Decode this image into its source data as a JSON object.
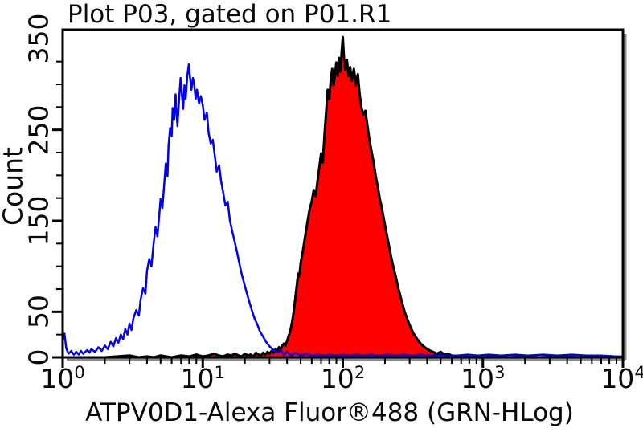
{
  "chart_data": {
    "type": "area",
    "subtype": "flow-cytometry-overlay-histogram",
    "title": "Plot P03, gated on P01.R1",
    "xlabel": "ATPV0D1-Alexa Fluor®488 (GRN-HLog)",
    "ylabel": "Count",
    "x_scale": "log",
    "xlim": [
      1,
      10000
    ],
    "ylim": [
      0,
      360
    ],
    "x_min_exp": 0,
    "x_max_exp": 4,
    "x_tick_base": "10",
    "x_tick_exponents": [
      0,
      1,
      2,
      3,
      4
    ],
    "y_tick_values": [
      0,
      50,
      150,
      250,
      350
    ],
    "y_minor_step": 25,
    "grid": false,
    "legend": "none",
    "frame_color": "#000000",
    "frame_shadow_color": "#8c8c8c",
    "series": [
      {
        "id": "red-filled-histogram",
        "name": "red filled histogram (peak ~1e2, max ~352 counts)",
        "color": "#000000",
        "fill": "#ff0000",
        "width": 3,
        "points": [
          [
            1,
            0
          ],
          [
            2,
            0
          ],
          [
            3,
            2
          ],
          [
            3.5,
            0
          ],
          [
            4,
            1
          ],
          [
            4.5,
            0
          ],
          [
            5,
            2
          ],
          [
            6,
            0
          ],
          [
            7,
            2
          ],
          [
            8,
            1
          ],
          [
            9,
            3
          ],
          [
            10,
            1
          ],
          [
            11,
            2
          ],
          [
            12,
            4
          ],
          [
            13,
            2
          ],
          [
            14,
            1
          ],
          [
            15,
            3
          ],
          [
            16,
            2
          ],
          [
            17,
            4
          ],
          [
            18,
            2
          ],
          [
            19,
            1
          ],
          [
            20,
            4
          ],
          [
            21,
            2
          ],
          [
            22,
            3
          ],
          [
            23,
            1
          ],
          [
            24,
            5
          ],
          [
            25,
            3
          ],
          [
            26,
            2
          ],
          [
            27,
            5
          ],
          [
            28,
            3
          ],
          [
            29,
            6
          ],
          [
            30,
            4
          ],
          [
            31,
            7
          ],
          [
            32,
            5
          ],
          [
            33,
            9
          ],
          [
            34,
            7
          ],
          [
            35,
            11
          ],
          [
            36,
            9
          ],
          [
            37,
            13
          ],
          [
            38,
            15
          ],
          [
            39,
            13
          ],
          [
            40,
            18
          ],
          [
            41,
            23
          ],
          [
            42,
            28
          ],
          [
            43,
            35
          ],
          [
            44,
            44
          ],
          [
            45,
            55
          ],
          [
            46,
            67
          ],
          [
            47,
            80
          ],
          [
            48,
            92
          ],
          [
            49,
            89
          ],
          [
            50,
            103
          ],
          [
            52,
            118
          ],
          [
            54,
            134
          ],
          [
            56,
            149
          ],
          [
            58,
            163
          ],
          [
            60,
            171
          ],
          [
            62,
            184
          ],
          [
            64,
            177
          ],
          [
            66,
            194
          ],
          [
            68,
            209
          ],
          [
            70,
            224
          ],
          [
            72,
            214
          ],
          [
            74,
            244
          ],
          [
            76,
            269
          ],
          [
            78,
            294
          ],
          [
            80,
            284
          ],
          [
            82,
            304
          ],
          [
            84,
            317
          ],
          [
            86,
            299
          ],
          [
            88,
            311
          ],
          [
            90,
            324
          ],
          [
            92,
            309
          ],
          [
            94,
            329
          ],
          [
            96,
            314
          ],
          [
            98,
            334
          ],
          [
            100,
            352
          ],
          [
            102,
            329
          ],
          [
            104,
            316
          ],
          [
            107,
            327
          ],
          [
            110,
            309
          ],
          [
            113,
            319
          ],
          [
            116,
            304
          ],
          [
            120,
            317
          ],
          [
            124,
            299
          ],
          [
            128,
            311
          ],
          [
            132,
            289
          ],
          [
            136,
            274
          ],
          [
            140,
            267
          ],
          [
            145,
            271
          ],
          [
            150,
            254
          ],
          [
            155,
            239
          ],
          [
            160,
            227
          ],
          [
            166,
            214
          ],
          [
            172,
            199
          ],
          [
            178,
            187
          ],
          [
            184,
            174
          ],
          [
            190,
            164
          ],
          [
            197,
            151
          ],
          [
            205,
            137
          ],
          [
            213,
            124
          ],
          [
            221,
            111
          ],
          [
            230,
            99
          ],
          [
            240,
            87
          ],
          [
            250,
            75
          ],
          [
            262,
            63
          ],
          [
            275,
            51
          ],
          [
            290,
            41
          ],
          [
            305,
            33
          ],
          [
            320,
            26
          ],
          [
            340,
            20
          ],
          [
            360,
            15
          ],
          [
            385,
            11
          ],
          [
            410,
            8
          ],
          [
            440,
            6
          ],
          [
            470,
            4
          ],
          [
            500,
            6
          ],
          [
            530,
            3
          ],
          [
            560,
            4
          ],
          [
            600,
            2
          ],
          [
            650,
            1
          ],
          [
            700,
            2
          ],
          [
            760,
            1
          ],
          [
            830,
            0
          ],
          [
            900,
            1
          ],
          [
            1000,
            0
          ],
          [
            1200,
            1
          ],
          [
            1500,
            0
          ],
          [
            2000,
            1
          ],
          [
            2500,
            0
          ],
          [
            3500,
            1
          ],
          [
            5000,
            0
          ],
          [
            7000,
            1
          ],
          [
            10000,
            0
          ]
        ]
      },
      {
        "id": "blue-open-histogram",
        "name": "blue open histogram (peak ~8, max ~322 counts)",
        "color": "#0000ee",
        "fill": "none",
        "width": 2.5,
        "points": [
          [
            1.0,
            18
          ],
          [
            1.03,
            26
          ],
          [
            1.06,
            10
          ],
          [
            1.1,
            4
          ],
          [
            1.15,
            7
          ],
          [
            1.2,
            3
          ],
          [
            1.25,
            6
          ],
          [
            1.3,
            3
          ],
          [
            1.35,
            7
          ],
          [
            1.4,
            4
          ],
          [
            1.5,
            8
          ],
          [
            1.55,
            5
          ],
          [
            1.6,
            9
          ],
          [
            1.7,
            6
          ],
          [
            1.8,
            11
          ],
          [
            1.9,
            7
          ],
          [
            2.0,
            13
          ],
          [
            2.1,
            9
          ],
          [
            2.2,
            17
          ],
          [
            2.3,
            12
          ],
          [
            2.4,
            21
          ],
          [
            2.5,
            16
          ],
          [
            2.6,
            25
          ],
          [
            2.7,
            20
          ],
          [
            2.8,
            31
          ],
          [
            2.9,
            25
          ],
          [
            3.0,
            37
          ],
          [
            3.1,
            30
          ],
          [
            3.2,
            43
          ],
          [
            3.35,
            52
          ],
          [
            3.5,
            46
          ],
          [
            3.6,
            63
          ],
          [
            3.75,
            76
          ],
          [
            3.9,
            70
          ],
          [
            4.0,
            95
          ],
          [
            4.15,
            108
          ],
          [
            4.3,
            100
          ],
          [
            4.45,
            124
          ],
          [
            4.6,
            143
          ],
          [
            4.75,
            133
          ],
          [
            4.9,
            158
          ],
          [
            5.0,
            174
          ],
          [
            5.15,
            164
          ],
          [
            5.3,
            189
          ],
          [
            5.45,
            213
          ],
          [
            5.6,
            199
          ],
          [
            5.7,
            233
          ],
          [
            5.85,
            252
          ],
          [
            6.0,
            243
          ],
          [
            6.1,
            274
          ],
          [
            6.25,
            261
          ],
          [
            6.4,
            289
          ],
          [
            6.5,
            268
          ],
          [
            6.6,
            254
          ],
          [
            6.8,
            287
          ],
          [
            6.95,
            307
          ],
          [
            7.1,
            289
          ],
          [
            7.25,
            273
          ],
          [
            7.4,
            299
          ],
          [
            7.55,
            284
          ],
          [
            7.75,
            309
          ],
          [
            7.95,
            322
          ],
          [
            8.1,
            309
          ],
          [
            8.3,
            294
          ],
          [
            8.5,
            307
          ],
          [
            8.7,
            299
          ],
          [
            8.9,
            284
          ],
          [
            9.1,
            294
          ],
          [
            9.4,
            279
          ],
          [
            9.7,
            287
          ],
          [
            10.0,
            277
          ],
          [
            10.3,
            261
          ],
          [
            10.7,
            269
          ],
          [
            11.0,
            247
          ],
          [
            11.4,
            235
          ],
          [
            11.8,
            239
          ],
          [
            12.2,
            221
          ],
          [
            12.6,
            204
          ],
          [
            13.1,
            211
          ],
          [
            13.5,
            194
          ],
          [
            14.0,
            181
          ],
          [
            14.5,
            167
          ],
          [
            15.1,
            171
          ],
          [
            15.6,
            151
          ],
          [
            16.2,
            139
          ],
          [
            16.9,
            127
          ],
          [
            17.5,
            117
          ],
          [
            18.2,
            104
          ],
          [
            19.0,
            91
          ],
          [
            19.8,
            81
          ],
          [
            20.6,
            71
          ],
          [
            21.5,
            61
          ],
          [
            22.5,
            51
          ],
          [
            23.4,
            43
          ],
          [
            24.4,
            37
          ],
          [
            25.5,
            29
          ],
          [
            26.9,
            23
          ],
          [
            28.3,
            17
          ],
          [
            30,
            12
          ],
          [
            32,
            8
          ],
          [
            34,
            5
          ],
          [
            36,
            8
          ],
          [
            38,
            3
          ],
          [
            40,
            6
          ],
          [
            43,
            2
          ],
          [
            46,
            5
          ],
          [
            50,
            2
          ],
          [
            55,
            4
          ],
          [
            60,
            2
          ],
          [
            66,
            3
          ],
          [
            73,
            2
          ],
          [
            80,
            3
          ],
          [
            90,
            2
          ],
          [
            100,
            3
          ],
          [
            112,
            2
          ],
          [
            125,
            3
          ],
          [
            140,
            2
          ],
          [
            160,
            3
          ],
          [
            180,
            2
          ],
          [
            205,
            3
          ],
          [
            235,
            2
          ],
          [
            270,
            3
          ],
          [
            310,
            2
          ],
          [
            360,
            3
          ],
          [
            420,
            2
          ],
          [
            490,
            3
          ],
          [
            570,
            2
          ],
          [
            660,
            2
          ],
          [
            780,
            3
          ],
          [
            920,
            2
          ],
          [
            1100,
            3
          ],
          [
            1350,
            2
          ],
          [
            1700,
            3
          ],
          [
            2100,
            2
          ],
          [
            2700,
            3
          ],
          [
            3400,
            2
          ],
          [
            4300,
            3
          ],
          [
            5500,
            2
          ],
          [
            7000,
            2
          ],
          [
            9000,
            1
          ],
          [
            10000,
            1
          ]
        ]
      }
    ]
  }
}
